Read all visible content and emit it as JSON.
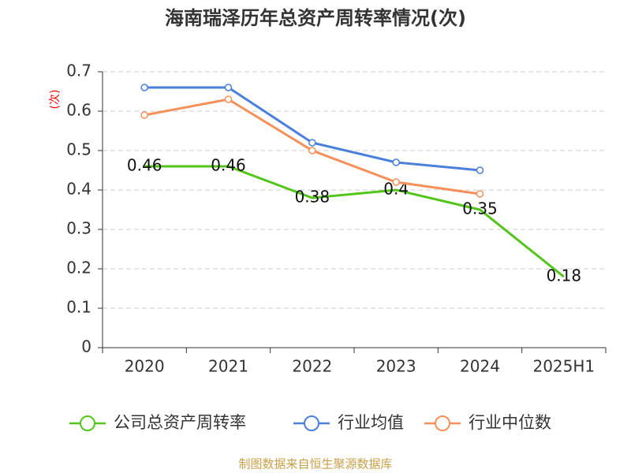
{
  "chart_data": {
    "type": "line",
    "title": "海南瑞泽历年总资产周转率情况(次)",
    "y_label": "(次)",
    "categories": [
      "2020",
      "2021",
      "2022",
      "2023",
      "2024",
      "2025H1"
    ],
    "series": [
      {
        "name": "公司总资产周转率",
        "color": "#52c41a",
        "values": [
          0.46,
          0.46,
          0.38,
          0.4,
          0.35,
          0.18
        ],
        "markers": false,
        "labels": true
      },
      {
        "name": "行业均值",
        "color": "#4a7fdc",
        "values": [
          0.66,
          0.66,
          0.52,
          0.47,
          0.45,
          null
        ],
        "markers": true,
        "labels": false
      },
      {
        "name": "行业中位数",
        "color": "#f5905a",
        "values": [
          0.59,
          0.63,
          0.5,
          0.42,
          0.39,
          null
        ],
        "markers": true,
        "labels": false
      }
    ],
    "ylim": [
      0,
      0.7
    ],
    "yticks": [
      0,
      0.1,
      0.2,
      0.3,
      0.4,
      0.5,
      0.6,
      0.7
    ],
    "grid": true,
    "source": "制图数据来自恒生聚源数据库"
  }
}
